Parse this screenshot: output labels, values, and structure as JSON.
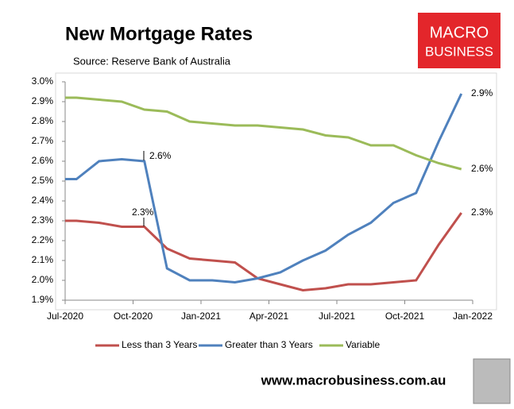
{
  "chart_data": {
    "type": "line",
    "title": "New Mortgage Rates",
    "subtitle": "Source: Reserve Bank of Australia",
    "logo": [
      "MACRO",
      "BUSINESS"
    ],
    "website": "www.macrobusiness.com.au",
    "x": [
      0,
      0.5,
      1.5,
      2.5,
      3.5,
      4.5,
      5.5,
      6.5,
      7.5,
      8.5,
      9.5,
      10.5,
      11.5,
      12.5,
      13.5,
      14.5,
      15.5,
      16.5,
      17.5
    ],
    "xlim": [
      0,
      18
    ],
    "xticks": [
      {
        "value": 0,
        "label": "Jul-2020"
      },
      {
        "value": 3,
        "label": "Oct-2020"
      },
      {
        "value": 6,
        "label": "Jan-2021"
      },
      {
        "value": 9,
        "label": "Apr-2021"
      },
      {
        "value": 12,
        "label": "Jul-2021"
      },
      {
        "value": 15,
        "label": "Oct-2021"
      },
      {
        "value": 18,
        "label": "Jan-2022"
      }
    ],
    "ylim": [
      1.9,
      3.0
    ],
    "yticks": [
      {
        "value": 1.9,
        "label": "1.9%"
      },
      {
        "value": 2.0,
        "label": "2.0%"
      },
      {
        "value": 2.1,
        "label": "2.1%"
      },
      {
        "value": 2.2,
        "label": "2.2%"
      },
      {
        "value": 2.3,
        "label": "2.3%"
      },
      {
        "value": 2.4,
        "label": "2.4%"
      },
      {
        "value": 2.5,
        "label": "2.5%"
      },
      {
        "value": 2.6,
        "label": "2.6%"
      },
      {
        "value": 2.7,
        "label": "2.7%"
      },
      {
        "value": 2.8,
        "label": "2.8%"
      },
      {
        "value": 2.9,
        "label": "2.9%"
      },
      {
        "value": 3.0,
        "label": "3.0%"
      }
    ],
    "series": [
      {
        "name": "Less than 3 Years",
        "color": "#c0504d",
        "values": [
          2.3,
          2.3,
          2.29,
          2.27,
          2.27,
          2.16,
          2.11,
          2.1,
          2.09,
          2.01,
          1.98,
          1.95,
          1.96,
          1.98,
          1.98,
          1.99,
          2.0,
          2.18,
          2.34
        ]
      },
      {
        "name": "Greater than 3 Years",
        "color": "#4f81bd",
        "values": [
          2.51,
          2.51,
          2.6,
          2.61,
          2.6,
          2.06,
          2.0,
          2.0,
          1.99,
          2.01,
          2.04,
          2.1,
          2.15,
          2.23,
          2.29,
          2.39,
          2.44,
          2.7,
          2.94
        ]
      },
      {
        "name": "Variable",
        "color": "#9bbb59",
        "values": [
          2.92,
          2.92,
          2.91,
          2.9,
          2.86,
          2.85,
          2.8,
          2.79,
          2.78,
          2.78,
          2.77,
          2.76,
          2.73,
          2.72,
          2.68,
          2.68,
          2.63,
          2.59,
          2.56
        ]
      }
    ],
    "annotations": [
      "2.6%",
      "2.3%",
      "2.9%",
      "2.6%",
      "2.3%"
    ]
  }
}
